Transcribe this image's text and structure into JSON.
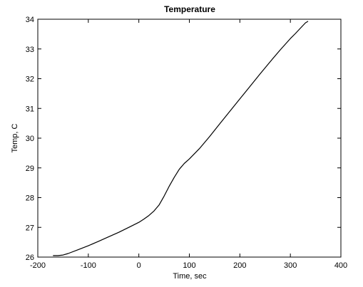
{
  "chart_data": {
    "type": "line",
    "title": "Temperature",
    "xlabel": "Time, sec",
    "ylabel": "Temp, C",
    "xlim": [
      -200,
      400
    ],
    "ylim": [
      26,
      34
    ],
    "xticks": [
      -200,
      -100,
      0,
      100,
      200,
      300,
      400
    ],
    "yticks": [
      26,
      27,
      28,
      29,
      30,
      31,
      32,
      33,
      34
    ],
    "grid": false,
    "series": [
      {
        "name": "Temperature",
        "color": "#000000",
        "x": [
          -170,
          -160,
          -150,
          -140,
          -120,
          -100,
          -80,
          -60,
          -40,
          -20,
          0,
          10,
          20,
          30,
          40,
          50,
          60,
          70,
          80,
          90,
          100,
          120,
          140,
          160,
          180,
          200,
          220,
          240,
          260,
          280,
          300,
          310,
          320,
          330,
          335
        ],
        "y": [
          26.05,
          26.05,
          26.07,
          26.12,
          26.25,
          26.38,
          26.53,
          26.68,
          26.83,
          27.0,
          27.17,
          27.28,
          27.4,
          27.55,
          27.75,
          28.05,
          28.38,
          28.68,
          28.95,
          29.15,
          29.3,
          29.65,
          30.05,
          30.48,
          30.9,
          31.32,
          31.74,
          32.16,
          32.57,
          32.97,
          33.35,
          33.52,
          33.7,
          33.88,
          33.93
        ]
      }
    ]
  }
}
